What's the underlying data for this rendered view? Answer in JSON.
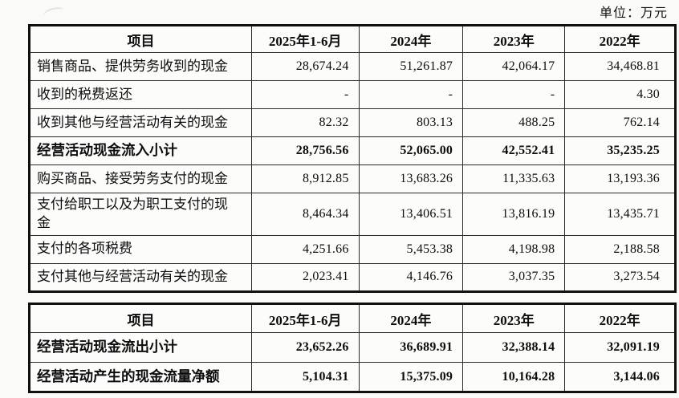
{
  "unit_label": "单位：万元",
  "column_widths": [
    "34.4%",
    "16.6%",
    "16.1%",
    "15.8%",
    "17.1%"
  ],
  "table1": {
    "headers": [
      "项目",
      "2025年1-6月",
      "2024年",
      "2023年",
      "2022年"
    ],
    "rows": [
      {
        "label": "销售商品、提供劳务收到的现金",
        "values": [
          "28,674.24",
          "51,261.87",
          "42,064.17",
          "34,468.81"
        ],
        "bold": false
      },
      {
        "label": "收到的税费返还",
        "values": [
          "-",
          "-",
          "-",
          "4.30"
        ],
        "bold": false
      },
      {
        "label": "收到其他与经营活动有关的现金",
        "values": [
          "82.32",
          "803.13",
          "488.25",
          "762.14"
        ],
        "bold": false
      },
      {
        "label": "经营活动现金流入小计",
        "values": [
          "28,756.56",
          "52,065.00",
          "42,552.41",
          "35,235.25"
        ],
        "bold": true
      },
      {
        "label": "购买商品、接受劳务支付的现金",
        "values": [
          "8,912.85",
          "13,683.26",
          "11,335.63",
          "13,193.36"
        ],
        "bold": false
      },
      {
        "label": "支付给职工以及为职工支付的现金",
        "values": [
          "8,464.34",
          "13,406.51",
          "13,816.19",
          "13,435.71"
        ],
        "bold": false
      },
      {
        "label": "支付的各项税费",
        "values": [
          "4,251.66",
          "5,453.38",
          "4,198.98",
          "2,188.58"
        ],
        "bold": false
      },
      {
        "label": "支付其他与经营活动有关的现金",
        "values": [
          "2,023.41",
          "4,146.76",
          "3,037.35",
          "3,273.54"
        ],
        "bold": false
      }
    ]
  },
  "table2": {
    "headers": [
      "项目",
      "2025年1-6月",
      "2024年",
      "2023年",
      "2022年"
    ],
    "rows": [
      {
        "label": "经营活动现金流出小计",
        "values": [
          "23,652.26",
          "36,689.91",
          "32,388.14",
          "32,091.19"
        ],
        "bold": true
      },
      {
        "label": "经营活动产生的现金流量净额",
        "values": [
          "5,104.31",
          "15,375.09",
          "10,164.28",
          "3,144.06"
        ],
        "bold": true
      }
    ]
  }
}
